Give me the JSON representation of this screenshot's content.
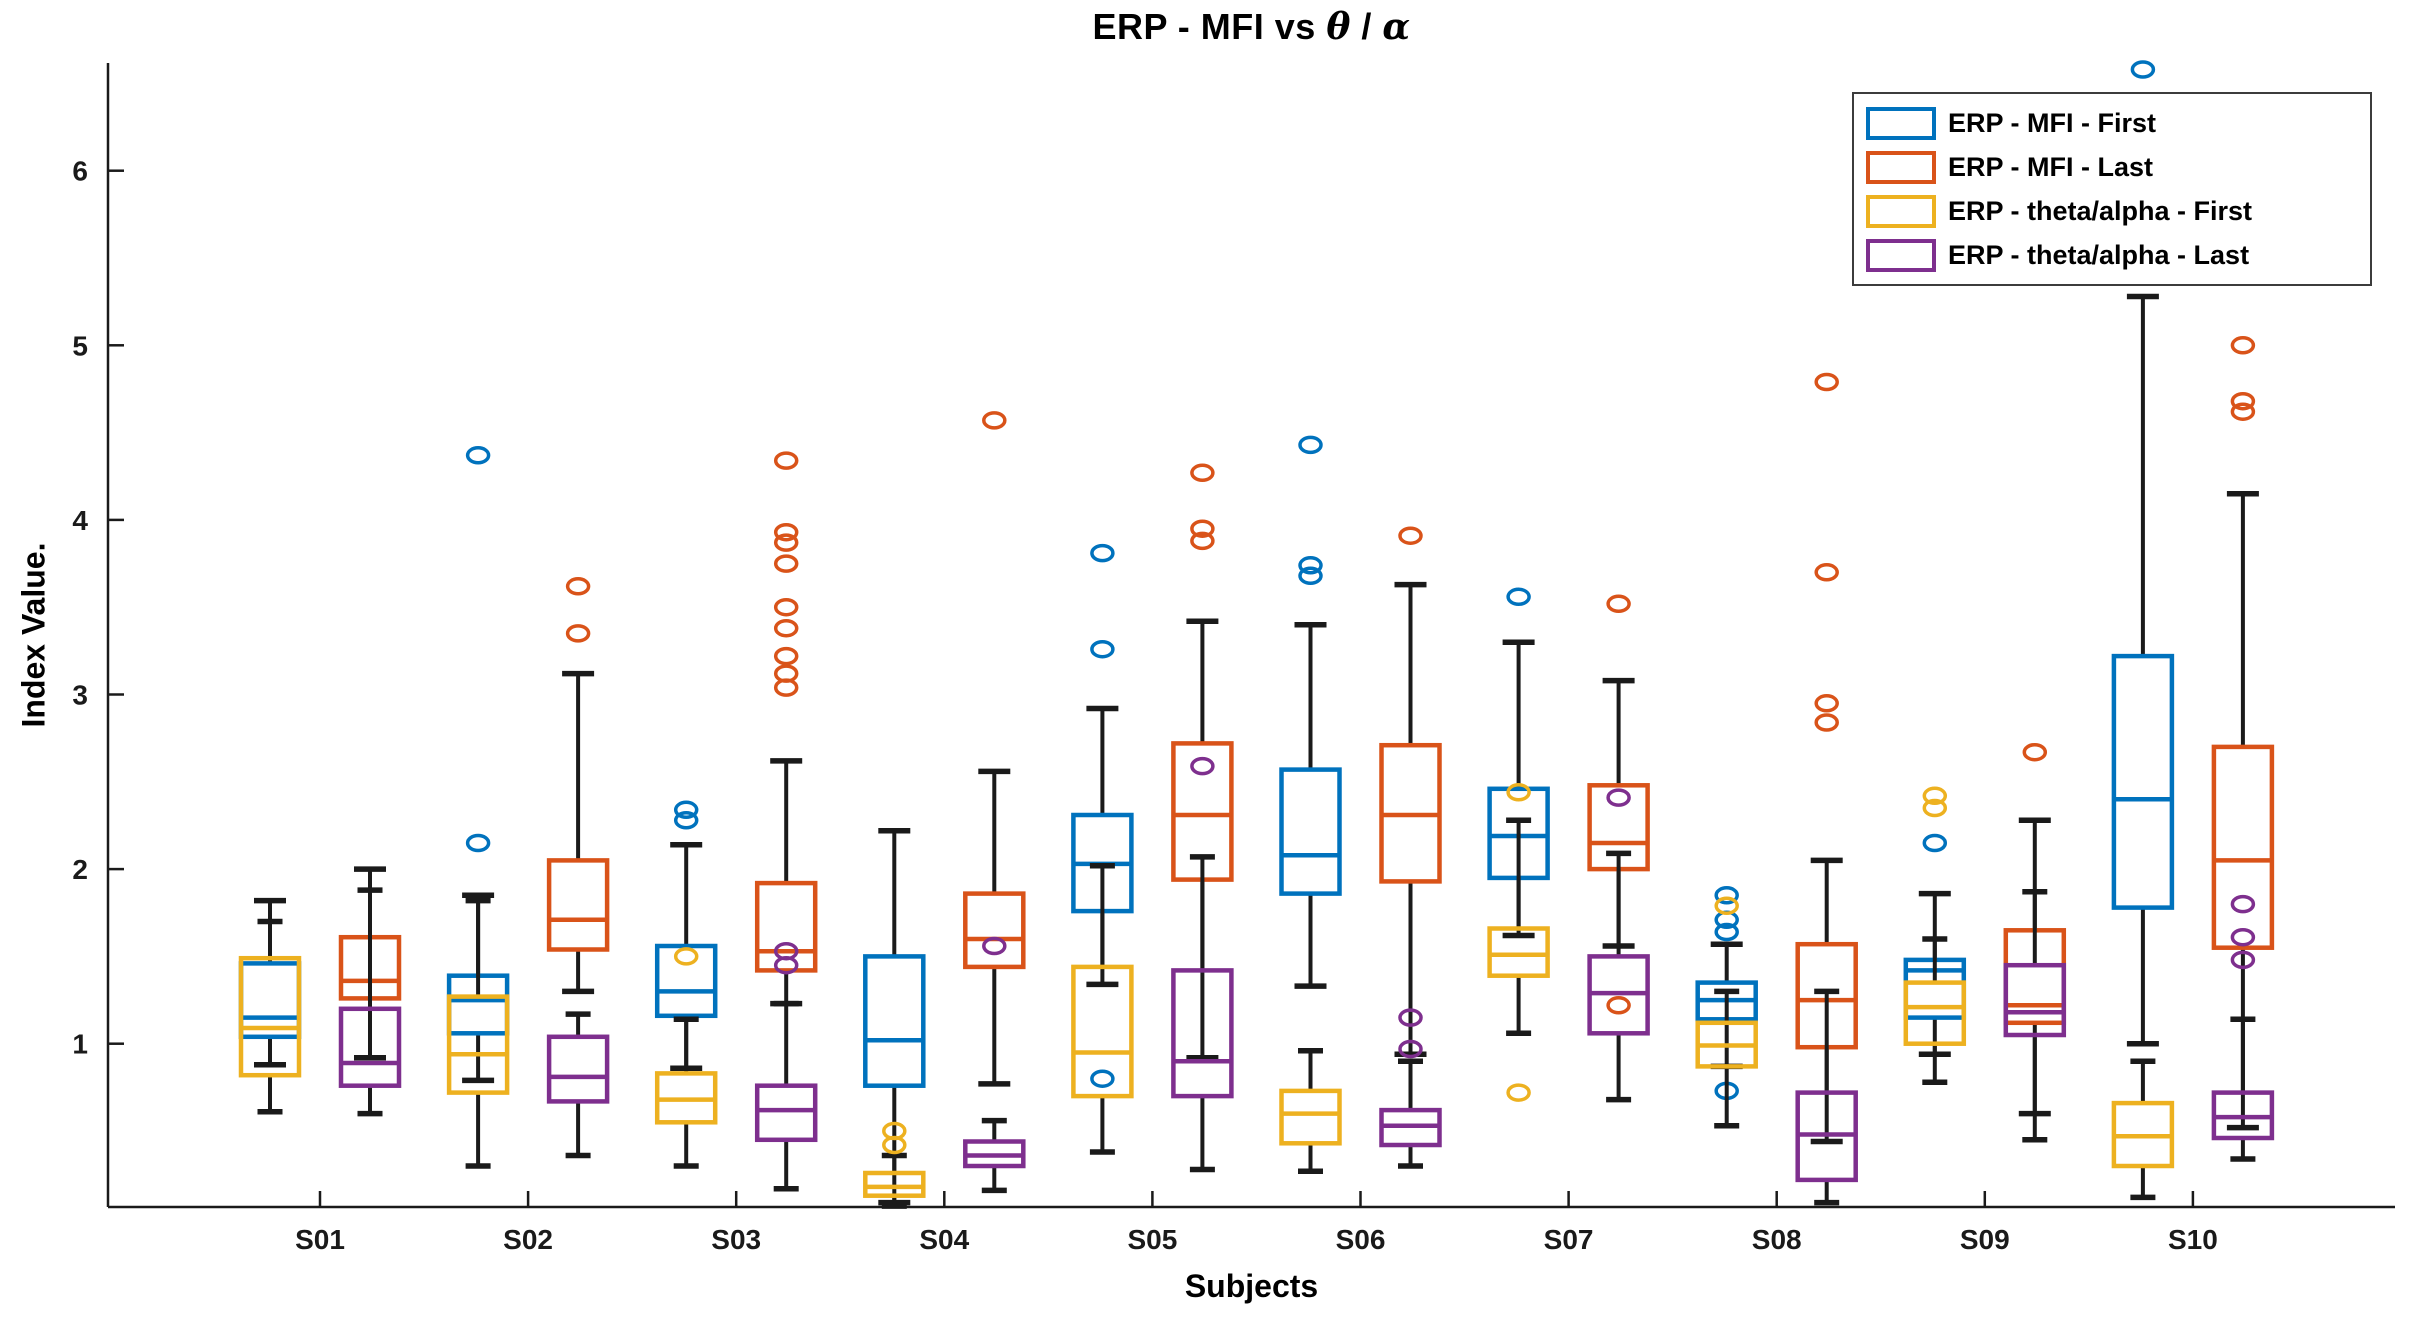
{
  "chart_data": {
    "type": "boxplot",
    "title": "ERP - MFI vs θ / α",
    "xlabel": "Subjects",
    "ylabel": "Index Value.",
    "categories": [
      "S01",
      "S02",
      "S03",
      "S04",
      "S05",
      "S06",
      "S07",
      "S08",
      "S09",
      "S10"
    ],
    "yticks": [
      1,
      2,
      3,
      4,
      5,
      6
    ],
    "ylim": [
      0.065,
      6.62
    ],
    "grid": false,
    "legend_position": "top-right",
    "axis_color": "#1a1a1a",
    "series": [
      {
        "name": "ERP - MFI - First",
        "color": "#0072BD",
        "group": "first",
        "stats": [
          {
            "lo": 0.88,
            "q1": 1.04,
            "med": 1.15,
            "q3": 1.46,
            "hi": 1.82,
            "out": []
          },
          {
            "lo": 0.79,
            "q1": 1.06,
            "med": 1.25,
            "q3": 1.39,
            "hi": 1.85,
            "out": [
              2.15,
              4.37
            ]
          },
          {
            "lo": 0.86,
            "q1": 1.16,
            "med": 1.3,
            "q3": 1.56,
            "hi": 2.14,
            "out": [
              2.28,
              2.34
            ]
          },
          {
            "lo": 0.09,
            "q1": 0.76,
            "med": 1.02,
            "q3": 1.5,
            "hi": 2.22,
            "out": []
          },
          {
            "lo": 1.34,
            "q1": 1.76,
            "med": 2.03,
            "q3": 2.31,
            "hi": 2.92,
            "out": [
              0.8,
              3.26,
              3.81
            ]
          },
          {
            "lo": 1.33,
            "q1": 1.86,
            "med": 2.08,
            "q3": 2.57,
            "hi": 3.4,
            "out": [
              3.68,
              3.74,
              4.43
            ]
          },
          {
            "lo": 1.62,
            "q1": 1.95,
            "med": 2.19,
            "q3": 2.46,
            "hi": 3.3,
            "out": [
              3.56
            ]
          },
          {
            "lo": 0.87,
            "q1": 1.14,
            "med": 1.25,
            "q3": 1.35,
            "hi": 1.57,
            "out": [
              0.73,
              1.64,
              1.71,
              1.85
            ]
          },
          {
            "lo": 0.94,
            "q1": 1.15,
            "med": 1.42,
            "q3": 1.48,
            "hi": 1.86,
            "out": [
              2.15
            ]
          },
          {
            "lo": 1.0,
            "q1": 1.78,
            "med": 2.4,
            "q3": 3.22,
            "hi": 5.28,
            "out": [
              6.58
            ]
          }
        ]
      },
      {
        "name": "ERP - MFI - Last",
        "color": "#D95319",
        "group": "last",
        "stats": [
          {
            "lo": 0.92,
            "q1": 1.26,
            "med": 1.36,
            "q3": 1.61,
            "hi": 2.0,
            "out": []
          },
          {
            "lo": 1.3,
            "q1": 1.54,
            "med": 1.71,
            "q3": 2.05,
            "hi": 3.12,
            "out": [
              3.35,
              3.62
            ]
          },
          {
            "lo": 1.23,
            "q1": 1.42,
            "med": 1.53,
            "q3": 1.92,
            "hi": 2.62,
            "out": [
              3.04,
              3.12,
              3.22,
              3.38,
              3.5,
              3.75,
              3.87,
              3.93,
              4.34
            ]
          },
          {
            "lo": 0.77,
            "q1": 1.44,
            "med": 1.6,
            "q3": 1.86,
            "hi": 2.56,
            "out": [
              4.57
            ]
          },
          {
            "lo": 0.92,
            "q1": 1.94,
            "med": 2.31,
            "q3": 2.72,
            "hi": 3.42,
            "out": [
              3.88,
              3.95,
              4.27
            ]
          },
          {
            "lo": 0.94,
            "q1": 1.93,
            "med": 2.31,
            "q3": 2.71,
            "hi": 3.63,
            "out": [
              3.91
            ]
          },
          {
            "lo": 1.56,
            "q1": 2.0,
            "med": 2.15,
            "q3": 2.48,
            "hi": 3.08,
            "out": [
              1.22,
              3.52
            ]
          },
          {
            "lo": 0.44,
            "q1": 0.98,
            "med": 1.25,
            "q3": 1.57,
            "hi": 2.05,
            "out": [
              2.84,
              2.95,
              3.7,
              4.79
            ]
          },
          {
            "lo": 0.6,
            "q1": 1.12,
            "med": 1.22,
            "q3": 1.65,
            "hi": 2.28,
            "out": [
              2.67
            ]
          },
          {
            "lo": 0.52,
            "q1": 1.55,
            "med": 2.05,
            "q3": 2.7,
            "hi": 4.15,
            "out": [
              4.62,
              4.68,
              5.0
            ]
          }
        ]
      },
      {
        "name": "ERP - theta/alpha - First",
        "color": "#EDB120",
        "group": "first",
        "stats": [
          {
            "lo": 0.61,
            "q1": 0.82,
            "med": 1.09,
            "q3": 1.49,
            "hi": 1.7,
            "out": []
          },
          {
            "lo": 0.3,
            "q1": 0.72,
            "med": 0.94,
            "q3": 1.27,
            "hi": 1.82,
            "out": []
          },
          {
            "lo": 0.3,
            "q1": 0.55,
            "med": 0.68,
            "q3": 0.83,
            "hi": 1.14,
            "out": [
              1.5
            ]
          },
          {
            "lo": 0.07,
            "q1": 0.13,
            "med": 0.18,
            "q3": 0.26,
            "hi": 0.36,
            "out": [
              0.42,
              0.5
            ]
          },
          {
            "lo": 0.38,
            "q1": 0.7,
            "med": 0.95,
            "q3": 1.44,
            "hi": 2.02,
            "out": []
          },
          {
            "lo": 0.27,
            "q1": 0.43,
            "med": 0.6,
            "q3": 0.73,
            "hi": 0.96,
            "out": []
          },
          {
            "lo": 1.06,
            "q1": 1.39,
            "med": 1.51,
            "q3": 1.66,
            "hi": 2.28,
            "out": [
              0.72,
              2.44
            ]
          },
          {
            "lo": 0.53,
            "q1": 0.87,
            "med": 0.99,
            "q3": 1.12,
            "hi": 1.3,
            "out": [
              1.79
            ]
          },
          {
            "lo": 0.78,
            "q1": 1.0,
            "med": 1.21,
            "q3": 1.35,
            "hi": 1.6,
            "out": [
              2.35,
              2.42
            ]
          },
          {
            "lo": 0.12,
            "q1": 0.3,
            "med": 0.47,
            "q3": 0.66,
            "hi": 0.9,
            "out": []
          }
        ]
      },
      {
        "name": "ERP - theta/alpha - Last",
        "color": "#7E2F8E",
        "group": "last",
        "stats": [
          {
            "lo": 0.6,
            "q1": 0.76,
            "med": 0.89,
            "q3": 1.2,
            "hi": 1.88,
            "out": []
          },
          {
            "lo": 0.36,
            "q1": 0.67,
            "med": 0.81,
            "q3": 1.04,
            "hi": 1.17,
            "out": []
          },
          {
            "lo": 0.17,
            "q1": 0.45,
            "med": 0.62,
            "q3": 0.76,
            "hi": 1.23,
            "out": [
              1.45,
              1.53
            ]
          },
          {
            "lo": 0.16,
            "q1": 0.3,
            "med": 0.36,
            "q3": 0.44,
            "hi": 0.56,
            "out": [
              1.56
            ]
          },
          {
            "lo": 0.28,
            "q1": 0.7,
            "med": 0.9,
            "q3": 1.42,
            "hi": 2.07,
            "out": [
              2.59
            ]
          },
          {
            "lo": 0.3,
            "q1": 0.42,
            "med": 0.53,
            "q3": 0.62,
            "hi": 0.9,
            "out": [
              0.97,
              1.15
            ]
          },
          {
            "lo": 0.68,
            "q1": 1.06,
            "med": 1.29,
            "q3": 1.5,
            "hi": 2.09,
            "out": [
              2.41
            ]
          },
          {
            "lo": 0.09,
            "q1": 0.22,
            "med": 0.48,
            "q3": 0.72,
            "hi": 1.3,
            "out": []
          },
          {
            "lo": 0.45,
            "q1": 1.05,
            "med": 1.18,
            "q3": 1.45,
            "hi": 1.87,
            "out": []
          },
          {
            "lo": 0.34,
            "q1": 0.46,
            "med": 0.58,
            "q3": 0.72,
            "hi": 1.14,
            "out": [
              1.48,
              1.61,
              1.8
            ]
          }
        ]
      }
    ]
  }
}
